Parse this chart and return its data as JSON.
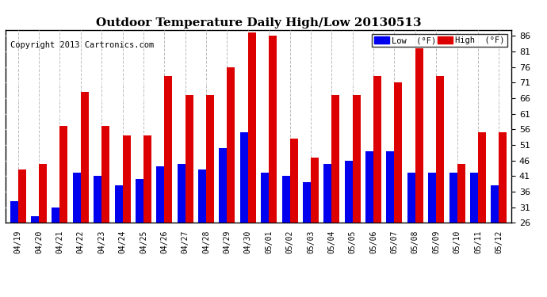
{
  "title": "Outdoor Temperature Daily High/Low 20130513",
  "copyright": "Copyright 2013 Cartronics.com",
  "legend_low": "Low  (°F)",
  "legend_high": "High  (°F)",
  "dates": [
    "04/19",
    "04/20",
    "04/21",
    "04/22",
    "04/23",
    "04/24",
    "04/25",
    "04/26",
    "04/27",
    "04/28",
    "04/29",
    "04/30",
    "05/01",
    "05/02",
    "05/03",
    "05/04",
    "05/05",
    "05/06",
    "05/07",
    "05/08",
    "05/09",
    "05/10",
    "05/11",
    "05/12"
  ],
  "lows": [
    33,
    28,
    31,
    42,
    41,
    38,
    40,
    44,
    45,
    43,
    50,
    55,
    42,
    41,
    39,
    45,
    46,
    49,
    49,
    42,
    42,
    42,
    42,
    38
  ],
  "highs": [
    43,
    45,
    57,
    68,
    57,
    54,
    54,
    73,
    67,
    67,
    76,
    87,
    86,
    53,
    47,
    67,
    67,
    73,
    71,
    82,
    73,
    45,
    55,
    55
  ],
  "y_min": 26.0,
  "y_max": 88.0,
  "y_ticks": [
    26.0,
    31.0,
    36.0,
    41.0,
    46.0,
    51.0,
    56.0,
    61.0,
    66.0,
    71.0,
    76.0,
    81.0,
    86.0
  ],
  "low_color": "#0000ee",
  "high_color": "#dd0000",
  "bg_color": "#ffffff",
  "plot_bg_color": "#ffffff",
  "grid_color": "#bbbbbb",
  "title_fontsize": 11,
  "copyright_fontsize": 7.5,
  "bar_width": 0.38
}
